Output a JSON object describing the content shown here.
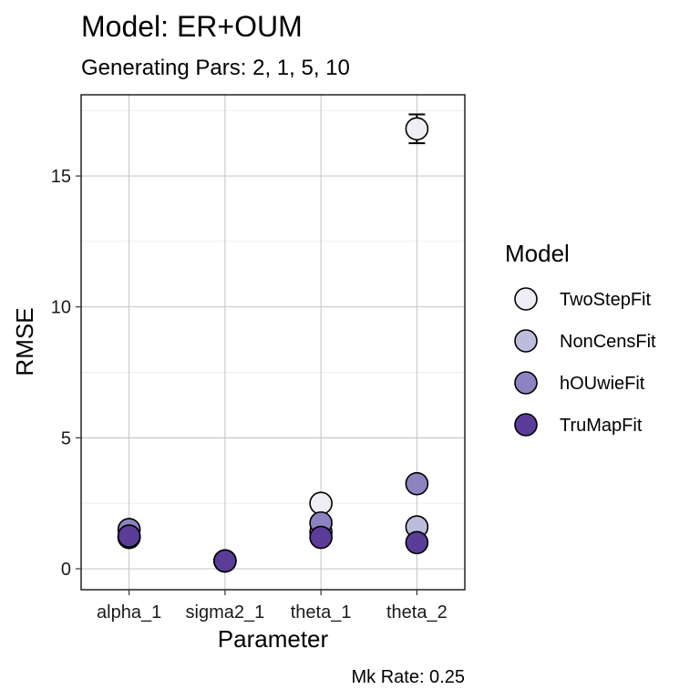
{
  "chart_data": {
    "type": "scatter",
    "title": "Model: ER+OUM",
    "subtitle": "Generating Pars: 2, 1, 5, 10",
    "caption": "Mk Rate: 0.25",
    "xlabel": "Parameter",
    "ylabel": "RMSE",
    "categories": [
      "alpha_1",
      "sigma2_1",
      "theta_1",
      "theta_2"
    ],
    "ylim": [
      -0.8,
      18.1
    ],
    "yticks": [
      0,
      5,
      10,
      15
    ],
    "grid": true,
    "legend": {
      "title": "Model",
      "position": "right"
    },
    "series": [
      {
        "name": "TwoStepFit",
        "color": "#efedf5",
        "values": [
          1.2,
          0.3,
          2.5,
          16.8
        ],
        "error_bars": [
          null,
          null,
          null,
          [
            16.25,
            17.35
          ]
        ]
      },
      {
        "name": "NonCensFit",
        "color": "#bcbddc",
        "values": [
          1.2,
          0.3,
          1.4,
          1.6
        ]
      },
      {
        "name": "hOUwieFit",
        "color": "#8c84c0",
        "values": [
          1.5,
          0.3,
          1.75,
          3.25
        ]
      },
      {
        "name": "TruMapFit",
        "color": "#5a3d99",
        "values": [
          1.25,
          0.3,
          1.2,
          1.0
        ]
      }
    ]
  }
}
